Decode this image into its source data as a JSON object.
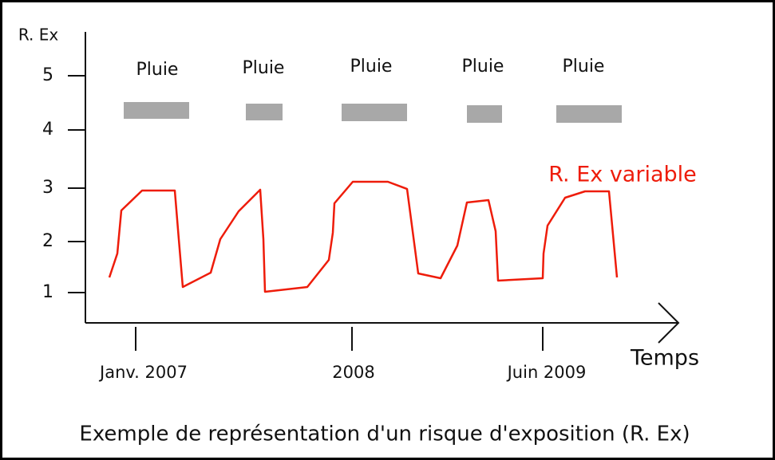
{
  "y_axis": {
    "title": "R. Ex",
    "ticks": [
      "5",
      "4",
      "3",
      "2",
      "1"
    ]
  },
  "x_axis": {
    "title": "Temps",
    "ticks": [
      "Janv. 2007",
      "2008",
      "Juin 2009"
    ]
  },
  "rain_labels": [
    "Pluie",
    "Pluie",
    "Pluie",
    "Pluie",
    "Pluie"
  ],
  "curve_label": "R. Ex variable",
  "caption": "Exemple de représentation d'un risque d'exposition (R. Ex)"
}
